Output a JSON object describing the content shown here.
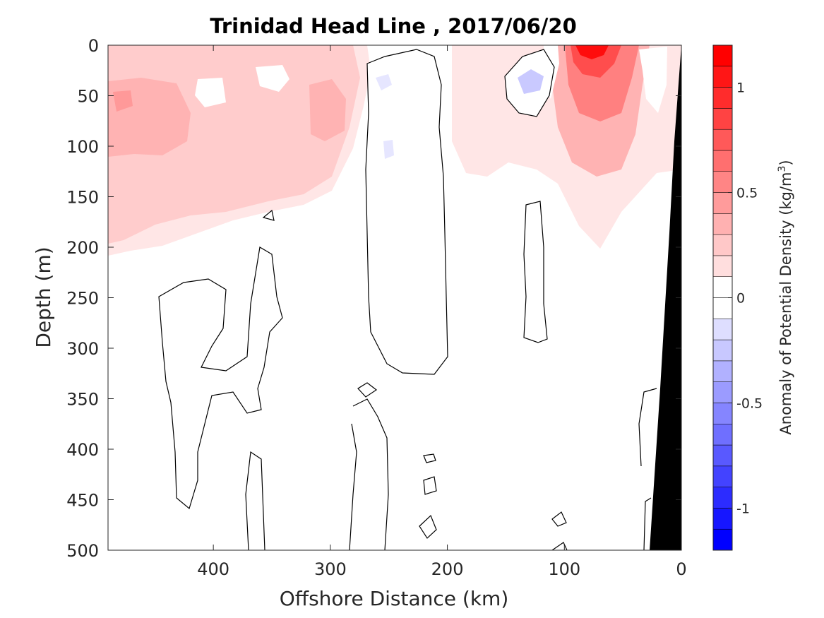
{
  "chart_data": {
    "type": "contour",
    "title": "Trinidad Head Line , 2017/06/20",
    "xlabel": "Offshore Distance (km)",
    "ylabel": "Depth (m)",
    "xlim": [
      490,
      0
    ],
    "x_reversed": true,
    "ylim": [
      500,
      0
    ],
    "y_reversed": true,
    "xticks": [
      400,
      300,
      200,
      100,
      0
    ],
    "yticks": [
      0,
      50,
      100,
      150,
      200,
      250,
      300,
      350,
      400,
      450,
      500
    ],
    "grid": false,
    "colorbar": {
      "label": "Anomaly of Potential Density (kg/m",
      "label_superscript": "3",
      "label_suffix": ")",
      "range": [
        -1.2,
        1.2
      ],
      "step": 0.1,
      "ticks": [
        -1,
        -0.5,
        0,
        0.5,
        1
      ],
      "tick_labels": [
        "-1",
        "-0.5",
        "0",
        "0.5",
        "1"
      ],
      "low_color": "#0000ff",
      "high_color": "#ff0000",
      "zero_color": "#ffffff",
      "zero_band_outline": "#000000"
    },
    "features": [
      {
        "kind": "positive",
        "x": 470,
        "depth": 55,
        "peak_anomaly": 0.45
      },
      {
        "kind": "positive",
        "x": 300,
        "depth": 75,
        "peak_anomaly": 0.35
      },
      {
        "kind": "positive",
        "x": 75,
        "depth": 5,
        "peak_anomaly": 1.15
      },
      {
        "kind": "negative",
        "x": 130,
        "depth": 35,
        "peak_anomaly": -0.2
      },
      {
        "kind": "negative",
        "x": 245,
        "depth": 35,
        "peak_anomaly": -0.1
      }
    ],
    "bathymetry_color": "#000000"
  }
}
